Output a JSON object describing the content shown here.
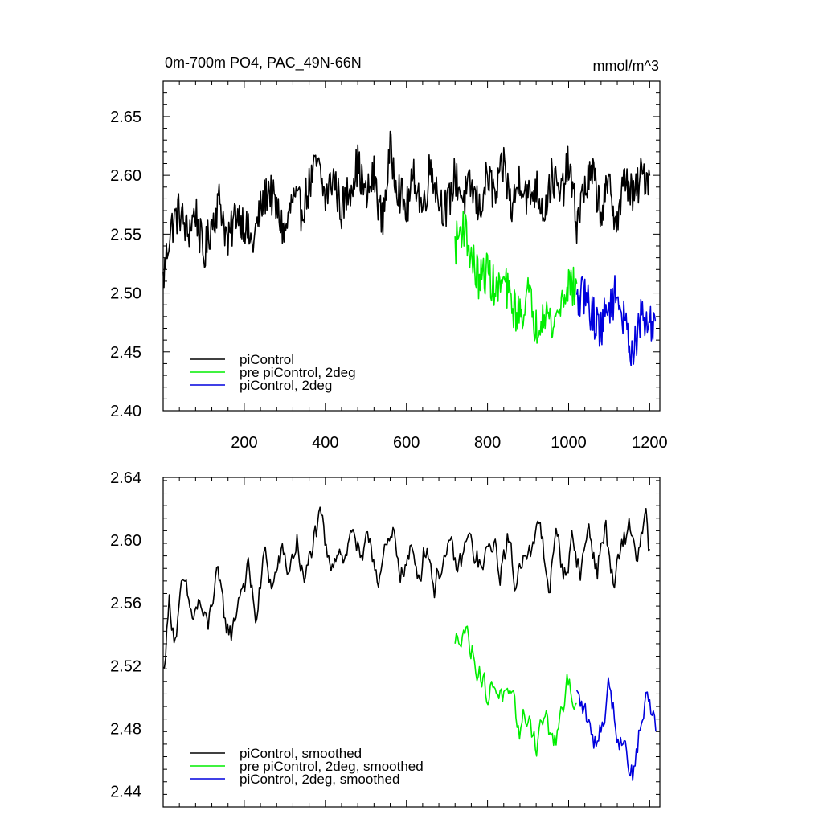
{
  "chart_data": [
    {
      "type": "line",
      "title": "0m-700m PO4, PAC_49N-66N",
      "units": "mmol/m^3",
      "xlim": [
        0,
        1225
      ],
      "ylim": [
        2.4,
        2.68
      ],
      "xticks": [
        200,
        400,
        600,
        800,
        1000,
        1200
      ],
      "xtick_labels": [
        "200",
        "400",
        "600",
        "800",
        "1000",
        "1200"
      ],
      "yticks": [
        2.4,
        2.45,
        2.5,
        2.55,
        2.6,
        2.65
      ],
      "ytick_labels": [
        "2.40",
        "2.45",
        "2.50",
        "2.55",
        "2.60",
        "2.65"
      ],
      "legend_position": "bottom-left",
      "series": [
        {
          "name": "piControl",
          "color": "#000000",
          "x": [
            0,
            15,
            25,
            40,
            60,
            80,
            100,
            120,
            140,
            160,
            180,
            200,
            220,
            240,
            260,
            280,
            300,
            320,
            340,
            360,
            380,
            400,
            420,
            440,
            460,
            480,
            500,
            520,
            540,
            560,
            580,
            600,
            620,
            640,
            660,
            680,
            700,
            720,
            740,
            760,
            780,
            800,
            820,
            840,
            860,
            880,
            900,
            920,
            940,
            960,
            980,
            1000,
            1020,
            1040,
            1060,
            1080,
            1100,
            1120,
            1140,
            1160,
            1180,
            1200
          ],
          "y": [
            2.51,
            2.55,
            2.56,
            2.57,
            2.55,
            2.57,
            2.53,
            2.56,
            2.58,
            2.54,
            2.57,
            2.56,
            2.54,
            2.57,
            2.59,
            2.57,
            2.55,
            2.58,
            2.57,
            2.59,
            2.61,
            2.58,
            2.6,
            2.57,
            2.59,
            2.61,
            2.58,
            2.6,
            2.56,
            2.62,
            2.59,
            2.57,
            2.6,
            2.57,
            2.61,
            2.58,
            2.57,
            2.6,
            2.58,
            2.59,
            2.57,
            2.6,
            2.58,
            2.61,
            2.57,
            2.6,
            2.58,
            2.59,
            2.57,
            2.6,
            2.58,
            2.61,
            2.56,
            2.59,
            2.6,
            2.57,
            2.59,
            2.56,
            2.6,
            2.58,
            2.6,
            2.6
          ]
        },
        {
          "name": "pre piControl, 2deg",
          "color": "#00ee00",
          "x": [
            720,
            740,
            760,
            780,
            800,
            820,
            840,
            860,
            880,
            900,
            920,
            940,
            960,
            980,
            1000,
            1020
          ],
          "y": [
            2.54,
            2.56,
            2.53,
            2.51,
            2.52,
            2.5,
            2.51,
            2.49,
            2.48,
            2.5,
            2.47,
            2.49,
            2.47,
            2.49,
            2.51,
            2.5
          ]
        },
        {
          "name": "piControl, 2deg",
          "color": "#0000dd",
          "x": [
            1020,
            1040,
            1060,
            1080,
            1100,
            1120,
            1140,
            1160,
            1180,
            1200,
            1215
          ],
          "y": [
            2.49,
            2.5,
            2.48,
            2.47,
            2.49,
            2.5,
            2.47,
            2.45,
            2.48,
            2.47,
            2.48
          ]
        }
      ]
    },
    {
      "type": "line",
      "title": "",
      "xlim": [
        0,
        1225
      ],
      "ylim": [
        2.43,
        2.64
      ],
      "xticks": [
        200,
        400,
        600,
        800,
        1000,
        1200
      ],
      "yticks": [
        2.44,
        2.48,
        2.52,
        2.56,
        2.6,
        2.64
      ],
      "ytick_labels": [
        "2.44",
        "2.48",
        "2.52",
        "2.56",
        "2.60",
        "2.64"
      ],
      "legend_position": "bottom-left",
      "series": [
        {
          "name": "piControl, smoothed",
          "color": "#000000",
          "x": [
            0,
            15,
            30,
            50,
            70,
            90,
            110,
            130,
            150,
            170,
            190,
            210,
            230,
            250,
            270,
            290,
            310,
            330,
            350,
            370,
            390,
            410,
            430,
            450,
            470,
            490,
            510,
            530,
            550,
            570,
            590,
            610,
            630,
            650,
            670,
            690,
            710,
            730,
            750,
            770,
            790,
            810,
            830,
            850,
            870,
            890,
            910,
            930,
            950,
            970,
            990,
            1010,
            1030,
            1050,
            1070,
            1090,
            1110,
            1130,
            1150,
            1170,
            1190,
            1200
          ],
          "y": [
            2.515,
            2.56,
            2.54,
            2.57,
            2.55,
            2.56,
            2.54,
            2.58,
            2.55,
            2.54,
            2.57,
            2.58,
            2.55,
            2.59,
            2.57,
            2.59,
            2.58,
            2.6,
            2.57,
            2.6,
            2.61,
            2.58,
            2.6,
            2.59,
            2.61,
            2.58,
            2.6,
            2.58,
            2.59,
            2.6,
            2.58,
            2.59,
            2.58,
            2.6,
            2.57,
            2.59,
            2.59,
            2.58,
            2.6,
            2.59,
            2.58,
            2.6,
            2.58,
            2.6,
            2.57,
            2.6,
            2.59,
            2.61,
            2.57,
            2.6,
            2.58,
            2.6,
            2.58,
            2.61,
            2.58,
            2.61,
            2.57,
            2.59,
            2.61,
            2.59,
            2.61,
            2.59
          ],
          "line_style": "smoothed"
        },
        {
          "name": "pre piControl, 2deg, smoothed",
          "color": "#00ee00",
          "x": [
            720,
            740,
            760,
            780,
            800,
            820,
            840,
            860,
            880,
            900,
            920,
            940,
            960,
            980,
            1000,
            1020
          ],
          "y": [
            2.53,
            2.55,
            2.53,
            2.52,
            2.5,
            2.51,
            2.5,
            2.49,
            2.48,
            2.49,
            2.47,
            2.49,
            2.47,
            2.48,
            2.51,
            2.5
          ]
        },
        {
          "name": "piControl, 2deg, smoothed",
          "color": "#0000dd",
          "x": [
            1020,
            1040,
            1060,
            1080,
            1100,
            1120,
            1140,
            1160,
            1180,
            1200,
            1215
          ],
          "y": [
            2.5,
            2.49,
            2.47,
            2.48,
            2.51,
            2.48,
            2.47,
            2.45,
            2.49,
            2.5,
            2.48
          ]
        }
      ]
    }
  ]
}
